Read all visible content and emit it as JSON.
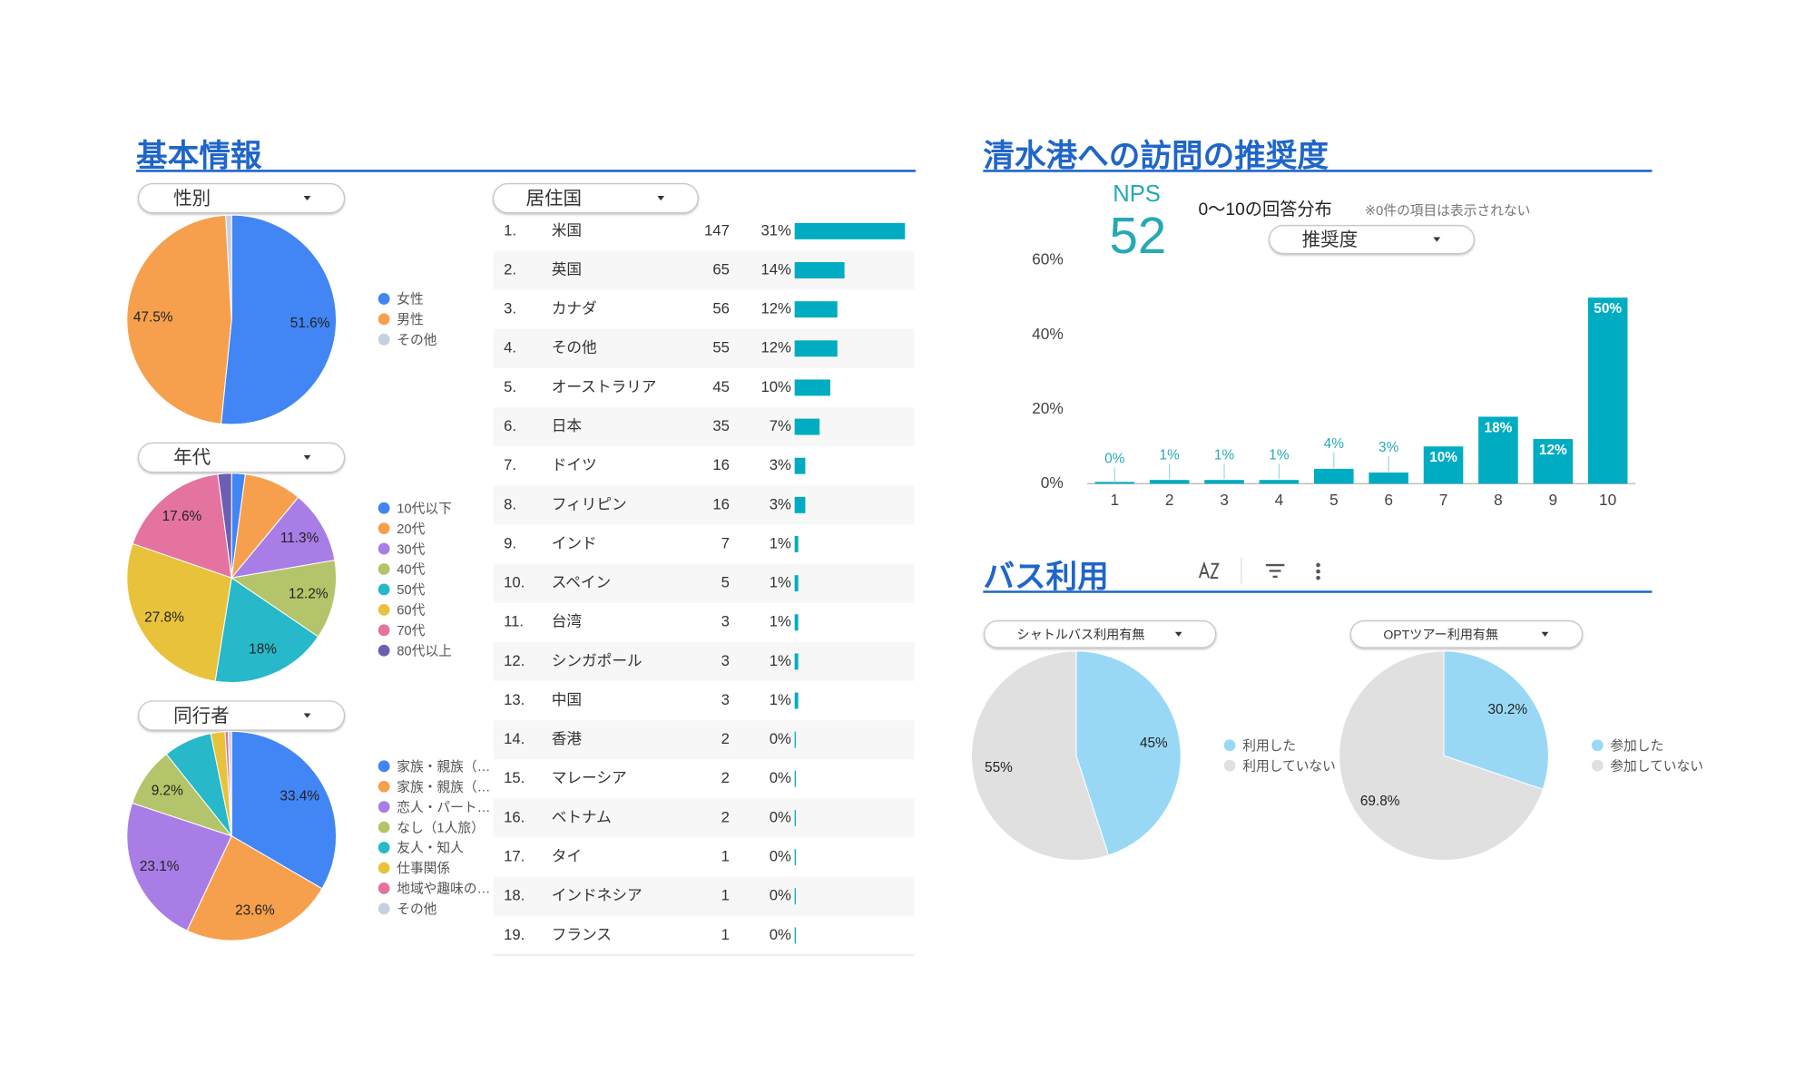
{
  "sections": [
    {
      "title": "基本情報"
    },
    {
      "title": "清水港への訪問の推奨度"
    },
    {
      "title": "バス利用"
    }
  ],
  "scorecard": {
    "label": "NPS",
    "value": 52
  },
  "country_table": {
    "title": "居住国",
    "rows": [
      {
        "rank": "1.",
        "name": "米国",
        "count": 147,
        "percent": 31,
        "percent_label": "31%"
      },
      {
        "rank": "2.",
        "name": "英国",
        "count": 65,
        "percent": 14,
        "percent_label": "14%"
      },
      {
        "rank": "3.",
        "name": "カナダ",
        "count": 56,
        "percent": 12,
        "percent_label": "12%"
      },
      {
        "rank": "4.",
        "name": "その他",
        "count": 55,
        "percent": 12,
        "percent_label": "12%"
      },
      {
        "rank": "5.",
        "name": "オーストラリア",
        "count": 45,
        "percent": 10,
        "percent_label": "10%"
      },
      {
        "rank": "6.",
        "name": "日本",
        "count": 35,
        "percent": 7,
        "percent_label": "7%"
      },
      {
        "rank": "7.",
        "name": "ドイツ",
        "count": 16,
        "percent": 3,
        "percent_label": "3%"
      },
      {
        "rank": "8.",
        "name": "フィリピン",
        "count": 16,
        "percent": 3,
        "percent_label": "3%"
      },
      {
        "rank": "9.",
        "name": "インド",
        "count": 7,
        "percent": 1,
        "percent_label": "1%"
      },
      {
        "rank": "10.",
        "name": "スペイン",
        "count": 5,
        "percent": 1,
        "percent_label": "1%"
      },
      {
        "rank": "11.",
        "name": "台湾",
        "count": 3,
        "percent": 1,
        "percent_label": "1%"
      },
      {
        "rank": "12.",
        "name": "シンガポール",
        "count": 3,
        "percent": 1,
        "percent_label": "1%"
      },
      {
        "rank": "13.",
        "name": "中国",
        "count": 3,
        "percent": 1,
        "percent_label": "1%"
      },
      {
        "rank": "14.",
        "name": "香港",
        "count": 2,
        "percent": 0,
        "percent_label": "0%"
      },
      {
        "rank": "15.",
        "name": "マレーシア",
        "count": 2,
        "percent": 0,
        "percent_label": "0%"
      },
      {
        "rank": "16.",
        "name": "ベトナム",
        "count": 2,
        "percent": 0,
        "percent_label": "0%"
      },
      {
        "rank": "17.",
        "name": "タイ",
        "count": 1,
        "percent": 0,
        "percent_label": "0%"
      },
      {
        "rank": "18.",
        "name": "インドネシア",
        "count": 1,
        "percent": 0,
        "percent_label": "0%"
      },
      {
        "rank": "19.",
        "name": "フランス",
        "count": 1,
        "percent": 0,
        "percent_label": "0%"
      }
    ],
    "color": "#00acc1"
  },
  "chart_data": [
    {
      "type": "pie",
      "title": "性別",
      "categories": [
        "女性",
        "男性",
        "その他"
      ],
      "values": [
        51.6,
        47.5,
        0.9
      ],
      "value_labels": [
        "51.6%",
        "47.5%",
        null
      ],
      "colors": [
        "#4285f4",
        "#f6a04d",
        "#c7cfe0"
      ]
    },
    {
      "type": "pie",
      "title": "年代",
      "categories": [
        "10代以下",
        "20代",
        "30代",
        "40代",
        "50代",
        "60代",
        "70代",
        "80代以上"
      ],
      "values": [
        2.1,
        8.9,
        11.3,
        12.2,
        18,
        27.8,
        17.6,
        2.1
      ],
      "value_labels": [
        null,
        null,
        "11.3%",
        "12.2%",
        "18%",
        "27.8%",
        "17.6%",
        null
      ],
      "colors": [
        "#4285f4",
        "#f6a04d",
        "#a97de6",
        "#b4c46a",
        "#27b8c9",
        "#e9c23c",
        "#e4739f",
        "#6a5fb2"
      ]
    },
    {
      "type": "pie",
      "title": "同行者",
      "categories": [
        "家族・親族（…",
        "家族・親族（…",
        "恋人・パート…",
        "なし（1人旅）",
        "友人・知人",
        "仕事関係",
        "地域や趣味の…",
        "その他"
      ],
      "values": [
        33.4,
        23.6,
        23.1,
        9.2,
        7.5,
        2.2,
        0.5,
        0.5
      ],
      "value_labels": [
        "33.4%",
        "23.6%",
        "23.1%",
        "9.2%",
        null,
        null,
        null,
        null
      ],
      "colors": [
        "#4285f4",
        "#f6a04d",
        "#a97de6",
        "#b4c46a",
        "#27b8c9",
        "#e9c23c",
        "#e4739f",
        "#c7cfe0"
      ]
    },
    {
      "type": "bar",
      "title": "0〜10の回答分布",
      "note": "※0件の項目は表示されない",
      "dropdown": "推奨度",
      "categories": [
        "1",
        "2",
        "3",
        "4",
        "5",
        "6",
        "7",
        "8",
        "9",
        "10"
      ],
      "values": [
        0,
        1,
        1,
        1,
        4,
        3,
        10,
        18,
        12,
        50
      ],
      "value_labels": [
        "0%",
        "1%",
        "1%",
        "1%",
        "4%",
        "3%",
        "10%",
        "18%",
        "12%",
        "50%"
      ],
      "color": "#00acc1",
      "ylim": [
        0,
        60
      ],
      "yticks": [
        {
          "value": 0,
          "label": "0%"
        },
        {
          "value": 20,
          "label": "20%"
        },
        {
          "value": 40,
          "label": "40%"
        },
        {
          "value": 60,
          "label": "60%"
        }
      ]
    },
    {
      "type": "pie",
      "title": "シャトルバス利用有無",
      "categories": [
        "利用した",
        "利用していない"
      ],
      "values": [
        45,
        55
      ],
      "value_labels": [
        "45%",
        "55%"
      ],
      "colors": [
        "#99d8f5",
        "#e0e0e0"
      ]
    },
    {
      "type": "pie",
      "title": "OPTツアー利用有無",
      "categories": [
        "参加した",
        "参加していない"
      ],
      "values": [
        30.2,
        69.8
      ],
      "value_labels": [
        "30.2%",
        "69.8%"
      ],
      "colors": [
        "#99d8f5",
        "#e0e0e0"
      ]
    }
  ]
}
